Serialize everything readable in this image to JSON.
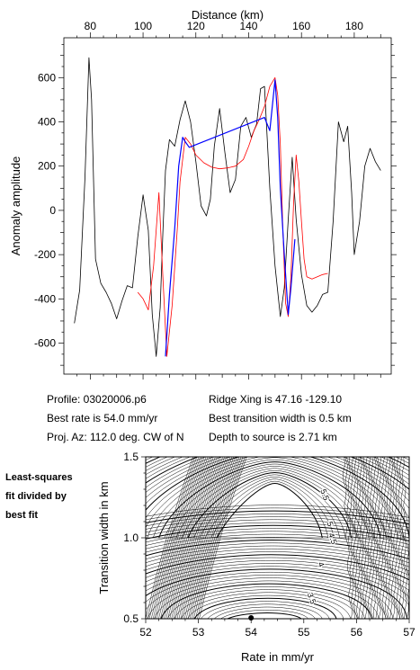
{
  "info": {
    "profile": "Profile: 03020006.p6",
    "best_rate": "Best rate is 54.0 mm/yr",
    "proj_az": "Proj. Az: 112.0 deg. CW of N",
    "ridge_xing": "Ridge Xing is 47.16 -129.10",
    "best_width": "Best transition width is 0.5 km",
    "depth": "Depth to source is   2.71 km"
  },
  "side_note": [
    "Least-squares",
    "fit divided by",
    "best fit"
  ],
  "chart_data": [
    {
      "type": "line",
      "xlabel": "Distance (km)",
      "ylabel": "Anomaly amplitude",
      "xlim": [
        70,
        194
      ],
      "ylim": [
        -740,
        780
      ],
      "xticks": [
        80,
        100,
        120,
        140,
        160,
        180
      ],
      "yticks": [
        -600,
        -400,
        -200,
        0,
        200,
        400,
        600
      ],
      "x_axis_position": "top",
      "series": [
        {
          "color": "#000000",
          "x": [
            74,
            76,
            78,
            79.5,
            80.5,
            82,
            84,
            86,
            88,
            90,
            92,
            94,
            96,
            98,
            100,
            102,
            103.5,
            105,
            106.5,
            107.5,
            108.5,
            110,
            112,
            114,
            116,
            118,
            120,
            122,
            124,
            125.5,
            127,
            129,
            131,
            133,
            135,
            137,
            139,
            141,
            143,
            144.5,
            146,
            148,
            150,
            152,
            153.5,
            155,
            156.5,
            158,
            160,
            162,
            164,
            166,
            168,
            170,
            172,
            174,
            176,
            177.5,
            179,
            180,
            182,
            184,
            186,
            188,
            190
          ],
          "y": [
            -510,
            -360,
            150,
            690,
            500,
            -220,
            -330,
            -370,
            -420,
            -490,
            -410,
            -340,
            -350,
            -120,
            70,
            -90,
            -470,
            -660,
            -440,
            -100,
            180,
            320,
            290,
            410,
            495,
            400,
            220,
            20,
            -25,
            50,
            290,
            460,
            260,
            80,
            140,
            380,
            420,
            330,
            390,
            550,
            560,
            100,
            -250,
            -480,
            -350,
            -40,
            240,
            -40,
            -290,
            -430,
            -460,
            -430,
            -380,
            -370,
            -50,
            400,
            310,
            380,
            80,
            -200,
            -50,
            200,
            280,
            220,
            180
          ]
        },
        {
          "color": "#ff0000",
          "x": [
            98,
            100,
            102,
            104,
            106,
            107.5,
            109,
            111,
            113,
            114,
            116,
            118,
            120,
            123,
            126,
            129,
            132,
            135,
            138,
            140,
            142,
            144,
            146,
            148,
            150,
            151,
            152,
            153,
            154,
            155,
            156,
            157,
            158,
            159,
            160,
            161,
            162,
            164,
            166,
            168,
            170
          ],
          "y": [
            -370,
            -400,
            -450,
            -250,
            80,
            -300,
            -660,
            -430,
            -80,
            130,
            330,
            300,
            250,
            215,
            195,
            188,
            192,
            200,
            230,
            290,
            360,
            410,
            470,
            560,
            600,
            520,
            300,
            -100,
            -420,
            -480,
            -300,
            30,
            250,
            130,
            -50,
            -220,
            -300,
            -310,
            -300,
            -290,
            -285
          ]
        },
        {
          "color": "#0000ff",
          "x": [
            108.5,
            110,
            112,
            113.5,
            115,
            116,
            117.5,
            146,
            148,
            150,
            151,
            152,
            153.5,
            155,
            156,
            157.5
          ],
          "y": [
            -660,
            -380,
            -80,
            200,
            330,
            310,
            285,
            420,
            360,
            590,
            420,
            100,
            -200,
            -470,
            -350,
            -130
          ]
        }
      ]
    },
    {
      "type": "contour",
      "xlabel": "Rate in mm/yr",
      "ylabel": "Transition width in km",
      "xlim": [
        52,
        57
      ],
      "ylim": [
        0.5,
        1.5
      ],
      "xticks": [
        52,
        53,
        54,
        55,
        56,
        57
      ],
      "yticks": [
        0.5,
        1.0,
        1.5
      ],
      "best_fit_point": {
        "x": 54.0,
        "y": 0.5
      },
      "contour_labels": [
        {
          "text": "5.5",
          "x": 55.35,
          "y": 1.26
        },
        {
          "text": "5",
          "x": 55.45,
          "y": 1.08
        },
        {
          "text": "4.5",
          "x": 55.5,
          "y": 0.99
        },
        {
          "text": "4",
          "x": 55.28,
          "y": 0.83
        },
        {
          "text": "3.5",
          "x": 55.1,
          "y": 0.62
        }
      ]
    }
  ]
}
